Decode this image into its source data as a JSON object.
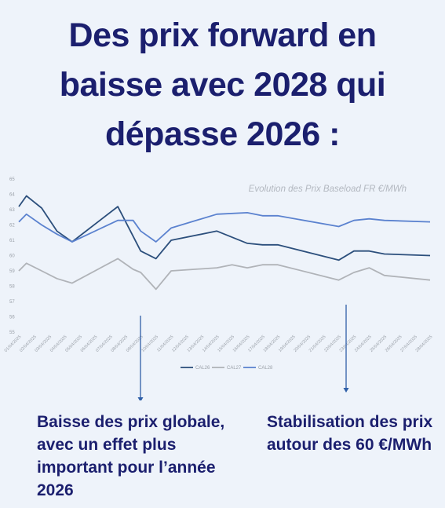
{
  "headline": {
    "line1": "Des prix forward en",
    "line2": "baisse avec 2028 qui",
    "line3": "dépasse 2026 :"
  },
  "captions": {
    "left": "Baisse des prix globale, avec un effet plus important pour l’année 2026",
    "right": "Stabilisation des prix autour des 60 €/MWh"
  },
  "colors": {
    "title": "#1b1f6e",
    "arrow": "#2f5fa8",
    "cal26": "#2c4f7c",
    "cal27": "#b0b3b8",
    "cal28": "#5b82cf"
  },
  "chart_data": {
    "type": "line",
    "title": "Evolution des Prix Baseload FR €/MWh",
    "ylim": [
      55,
      65
    ],
    "yticks": [
      "55",
      "56",
      "57",
      "58",
      "59",
      "60",
      "61",
      "62",
      "63",
      "64",
      "65"
    ],
    "x_labels": [
      "01/04/2025",
      "02/04/2025",
      "03/04/2025",
      "04/04/2025",
      "05/04/2025",
      "06/04/2025",
      "07/04/2025",
      "08/04/2025",
      "09/04/2025",
      "10/04/2025",
      "11/04/2025",
      "12/04/2025",
      "13/04/2025",
      "14/04/2025",
      "15/04/2025",
      "16/04/2025",
      "17/04/2025",
      "18/04/2025",
      "19/04/2025",
      "20/04/2025",
      "21/04/2025",
      "22/04/2025",
      "23/04/2025",
      "24/04/2025",
      "25/04/2025",
      "26/04/2025",
      "27/04/2025",
      "28/04/2025"
    ],
    "legend_position": "bottom",
    "series": [
      {
        "name": "CAL26",
        "color": "#2c4f7c",
        "points": [
          [
            0,
            63.2
          ],
          [
            0.5,
            63.9
          ],
          [
            1.5,
            63.1
          ],
          [
            2.5,
            61.6
          ],
          [
            3.5,
            60.9
          ],
          [
            6.5,
            63.2
          ],
          [
            8,
            60.3
          ],
          [
            9,
            59.8
          ],
          [
            10,
            61.0
          ],
          [
            13,
            61.6
          ],
          [
            15,
            60.8
          ],
          [
            16,
            60.7
          ],
          [
            17,
            60.7
          ],
          [
            21,
            59.7
          ],
          [
            22,
            60.3
          ],
          [
            23,
            60.3
          ],
          [
            24,
            60.1
          ],
          [
            27,
            60.0
          ]
        ]
      },
      {
        "name": "CAL27",
        "color": "#b0b3b8",
        "points": [
          [
            0,
            59.0
          ],
          [
            0.5,
            59.5
          ],
          [
            1.5,
            59.0
          ],
          [
            2.5,
            58.5
          ],
          [
            3.5,
            58.2
          ],
          [
            6.5,
            59.8
          ],
          [
            7.5,
            59.1
          ],
          [
            8,
            58.9
          ],
          [
            9,
            57.8
          ],
          [
            10,
            59.0
          ],
          [
            13,
            59.2
          ],
          [
            14,
            59.4
          ],
          [
            15,
            59.2
          ],
          [
            16,
            59.4
          ],
          [
            17,
            59.4
          ],
          [
            21,
            58.4
          ],
          [
            22,
            58.9
          ],
          [
            23,
            59.2
          ],
          [
            24,
            58.7
          ],
          [
            27,
            58.4
          ]
        ]
      },
      {
        "name": "CAL28",
        "color": "#5b82cf",
        "points": [
          [
            0,
            62.2
          ],
          [
            0.5,
            62.7
          ],
          [
            1.5,
            62.0
          ],
          [
            2.5,
            61.4
          ],
          [
            3.5,
            60.9
          ],
          [
            6.5,
            62.3
          ],
          [
            7.5,
            62.3
          ],
          [
            8,
            61.6
          ],
          [
            9,
            60.9
          ],
          [
            10,
            61.8
          ],
          [
            13,
            62.7
          ],
          [
            15,
            62.8
          ],
          [
            16,
            62.6
          ],
          [
            17,
            62.6
          ],
          [
            21,
            61.9
          ],
          [
            22,
            62.3
          ],
          [
            23,
            62.4
          ],
          [
            24,
            62.3
          ],
          [
            27,
            62.2
          ]
        ]
      }
    ]
  }
}
